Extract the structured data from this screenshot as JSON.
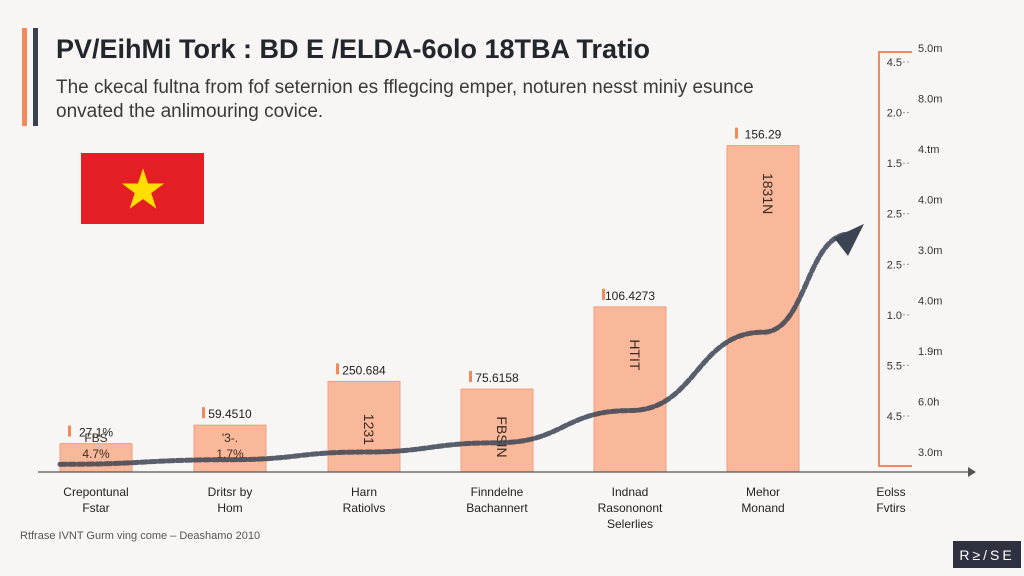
{
  "header": {
    "title": "PV/EihMi Tork : BD E /ELDA-6olo 18TBA Tratio",
    "subtitle": "The ckecal fultna from fof seternion es fflegcing emper, noturen nesst miniy esunce onvated the anlimouring covice."
  },
  "footer": {
    "source": "Rtfrase IVNT Gurm ving come – Deashamo 2010",
    "brand": "R≥/SE"
  },
  "colors": {
    "bar_fill": "#f9b899",
    "bar_stroke": "#f0a07c",
    "accent": "#f08a5d",
    "trend": "#3c4353",
    "flag_red": "#e31e24",
    "flag_star": "#ffde00"
  },
  "icons": {
    "flag": "vietnam-flag-icon",
    "arrow": "trend-arrow-icon"
  },
  "chart_data": {
    "type": "bar",
    "categories": [
      [
        "Crepontunal",
        "Fstar"
      ],
      [
        "Dritsr by",
        "Hom"
      ],
      [
        "Harn",
        "Ratiolvs"
      ],
      [
        "Finndelne",
        "Bachannert"
      ],
      [
        "Indnad",
        "Rasononont",
        "Selerlies"
      ],
      [
        "Mehor",
        "Monand"
      ],
      [
        "Eolss",
        "Fvtirs"
      ]
    ],
    "values": [
      0.37,
      0.61,
      1.18,
      1.08,
      2.15,
      4.25,
      null
    ],
    "value_labels": [
      "27.1%",
      "59.4510",
      "250.684",
      "75.6158",
      "106.4273",
      "156.29",
      ""
    ],
    "inner_labels": [
      [
        "FBS",
        "4.7%"
      ],
      [
        "'3-.",
        "1.7%"
      ],
      [
        "1231"
      ],
      [
        "FBSIN"
      ],
      [
        "HTIT"
      ],
      [
        "1831N"
      ],
      []
    ],
    "trend_line": [
      0.1,
      0.16,
      0.26,
      0.38,
      0.8,
      1.82,
      3.1
    ],
    "axis_right": {
      "inner_ticks": [
        "4.5",
        "2.0",
        "1.5",
        "2.5",
        "2.5",
        "1.0",
        "5.5",
        "4.5"
      ],
      "outer_ticks": [
        "5.0m",
        "8.0m",
        "4.tm",
        "4.0m",
        "3.0m",
        "4.0m",
        "1.9m",
        "6.0h",
        "3.0m"
      ]
    },
    "ylim": [
      0,
      5
    ]
  }
}
